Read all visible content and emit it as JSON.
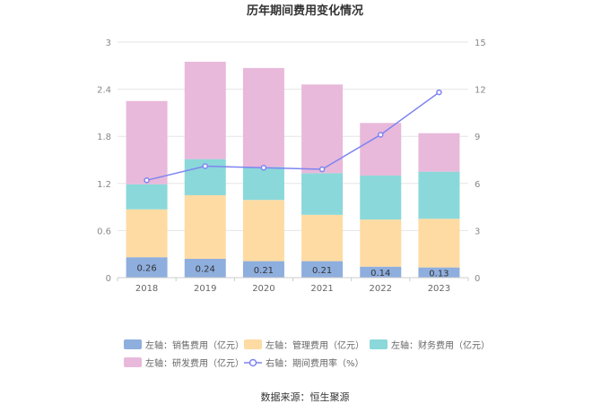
{
  "chart_data": {
    "type": "bar",
    "stacked": true,
    "title": "历年期间费用变化情况",
    "categories": [
      "2018",
      "2019",
      "2020",
      "2021",
      "2022",
      "2023"
    ],
    "series": [
      {
        "name": "左轴：销售费用（亿元）",
        "axis": "left",
        "color": "#8eaede",
        "values": [
          0.26,
          0.24,
          0.21,
          0.21,
          0.14,
          0.13
        ],
        "labels": [
          "0.26",
          "0.24",
          "0.21",
          "0.21",
          "0.14",
          "0.13"
        ]
      },
      {
        "name": "左轴：管理费用（亿元）",
        "axis": "left",
        "color": "#fddba3",
        "values": [
          0.61,
          0.81,
          0.78,
          0.59,
          0.6,
          0.62
        ]
      },
      {
        "name": "左轴：财务费用（亿元）",
        "axis": "left",
        "color": "#8ad8da",
        "values": [
          0.32,
          0.46,
          0.42,
          0.53,
          0.56,
          0.6
        ]
      },
      {
        "name": "左轴：研发费用（亿元）",
        "axis": "left",
        "color": "#e8b9da",
        "values": [
          1.06,
          1.24,
          1.26,
          1.13,
          0.67,
          0.49
        ]
      }
    ],
    "line": {
      "name": "右轴：期间费用率（%）",
      "axis": "right",
      "color": "#7f84f0",
      "values": [
        6.2,
        7.1,
        7.0,
        6.9,
        9.1,
        11.8
      ]
    },
    "yleft": {
      "min": 0,
      "max": 3,
      "ticks": [
        "0",
        "0.6",
        "1.2",
        "1.8",
        "2.4",
        "3"
      ]
    },
    "yright": {
      "min": 0,
      "max": 15,
      "ticks": [
        "0",
        "3",
        "6",
        "9",
        "12",
        "15"
      ]
    },
    "grid": true,
    "legend": "bottom"
  },
  "source": "数据来源：恒生聚源"
}
